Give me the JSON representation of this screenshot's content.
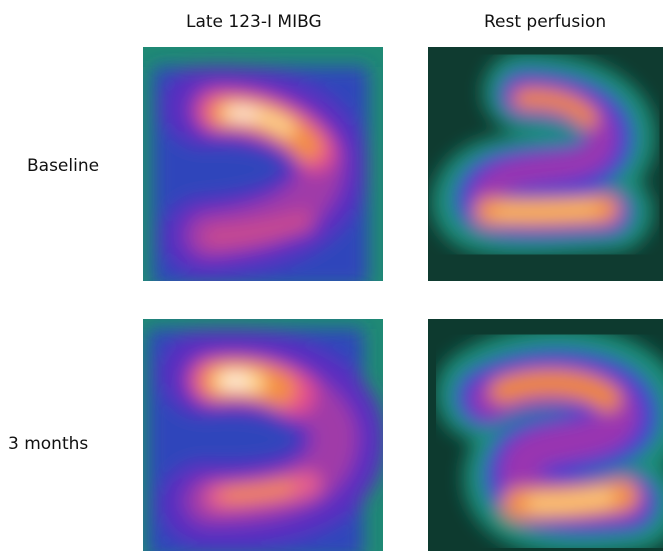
{
  "columns": [
    "Late 123-I MIBG",
    "Rest perfusion"
  ],
  "rows": [
    "Baseline",
    "3 months"
  ]
}
